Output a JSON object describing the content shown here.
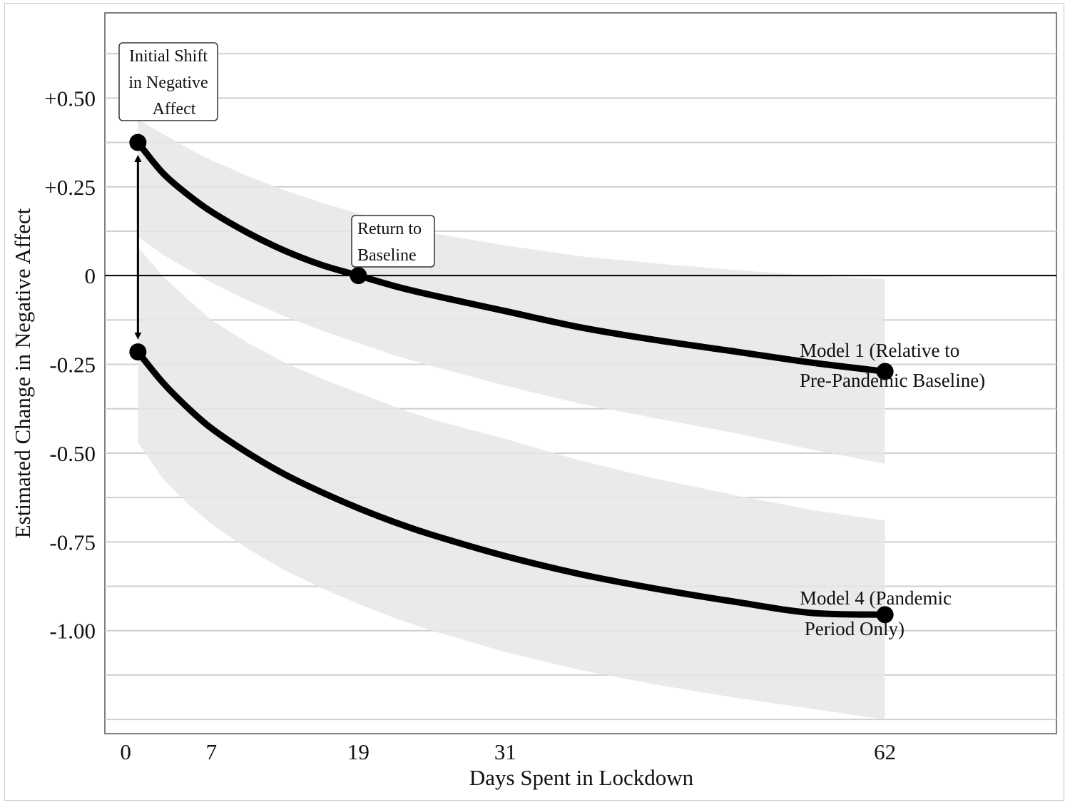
{
  "chart_data": {
    "type": "line",
    "title": "",
    "xlabel": "Days Spent in Lockdown",
    "ylabel": "Estimated Change in Negative Affect",
    "xlim": [
      -1.7,
      76.0
    ],
    "ylim": [
      -1.29,
      0.74
    ],
    "x_ticks": [
      0,
      7,
      19,
      31,
      62
    ],
    "x_tick_labels": [
      "0",
      "7",
      "19",
      "31",
      "62"
    ],
    "y_ticks": [
      0.5,
      0.25,
      0,
      -0.25,
      -0.5,
      -0.75,
      -1.0
    ],
    "y_tick_labels": [
      "+0.50",
      "+0.25",
      "0",
      "-0.25",
      "-0.50",
      "-0.75",
      "-1.00"
    ],
    "y_grid": [
      0.625,
      0.5,
      0.375,
      0.25,
      0.125,
      -0.125,
      -0.25,
      -0.375,
      -0.5,
      -0.625,
      -0.75,
      -0.875,
      -1.0,
      -1.125,
      -1.25
    ],
    "zero_line": 0,
    "grid": true,
    "series": [
      {
        "name": "Model 1 (Relative to Pre-Pandemic Baseline)",
        "label_lines": [
          "Model 1 (Relative to",
          "Pre-Pandemic Baseline)"
        ],
        "x": [
          1,
          3,
          5,
          7,
          10,
          13,
          16,
          19,
          22,
          25,
          31,
          37,
          43,
          50,
          56,
          62
        ],
        "y": [
          0.375,
          0.29,
          0.23,
          0.18,
          0.12,
          0.07,
          0.03,
          0.0,
          -0.03,
          -0.055,
          -0.1,
          -0.145,
          -0.18,
          -0.215,
          -0.245,
          -0.27
        ],
        "ci_upper": [
          0.44,
          0.4,
          0.36,
          0.325,
          0.28,
          0.24,
          0.205,
          0.175,
          0.145,
          0.12,
          0.085,
          0.055,
          0.035,
          0.015,
          0.0,
          -0.01
        ],
        "ci_lower": [
          0.11,
          0.06,
          0.02,
          -0.02,
          -0.07,
          -0.115,
          -0.155,
          -0.19,
          -0.225,
          -0.255,
          -0.31,
          -0.36,
          -0.4,
          -0.445,
          -0.49,
          -0.53
        ]
      },
      {
        "name": "Model 4 (Pandemic Period Only)",
        "label_lines": [
          "Model 4 (Pandemic",
          " Period Only)"
        ],
        "x": [
          1,
          3,
          5,
          7,
          10,
          13,
          16,
          19,
          22,
          25,
          31,
          37,
          43,
          50,
          56,
          62
        ],
        "y": [
          -0.215,
          -0.3,
          -0.37,
          -0.43,
          -0.5,
          -0.56,
          -0.61,
          -0.655,
          -0.695,
          -0.73,
          -0.79,
          -0.84,
          -0.88,
          -0.92,
          -0.95,
          -0.955
        ],
        "ci_upper": [
          0.08,
          0.0,
          -0.065,
          -0.125,
          -0.19,
          -0.245,
          -0.29,
          -0.33,
          -0.37,
          -0.405,
          -0.46,
          -0.52,
          -0.57,
          -0.62,
          -0.66,
          -0.69
        ],
        "ci_lower": [
          -0.47,
          -0.57,
          -0.64,
          -0.7,
          -0.77,
          -0.83,
          -0.88,
          -0.925,
          -0.965,
          -1.0,
          -1.06,
          -1.11,
          -1.15,
          -1.19,
          -1.22,
          -1.25
        ]
      }
    ],
    "points": [
      {
        "name": "model1-start",
        "x": 1,
        "y": 0.375
      },
      {
        "name": "model1-baseline-return",
        "x": 19,
        "y": 0.0
      },
      {
        "name": "model1-end",
        "x": 62,
        "y": -0.27
      },
      {
        "name": "model4-start",
        "x": 1,
        "y": -0.215
      },
      {
        "name": "model4-end",
        "x": 62,
        "y": -0.955
      }
    ],
    "arrow": {
      "x": 1,
      "y_from": -0.17,
      "y_to": 0.33
    },
    "annotations": [
      {
        "name": "initial-shift",
        "lines": [
          "Initial Shift",
          "in Negative",
          "Affect"
        ]
      },
      {
        "name": "return-to-baseline",
        "lines": [
          "Return to",
          "Baseline"
        ]
      }
    ]
  }
}
